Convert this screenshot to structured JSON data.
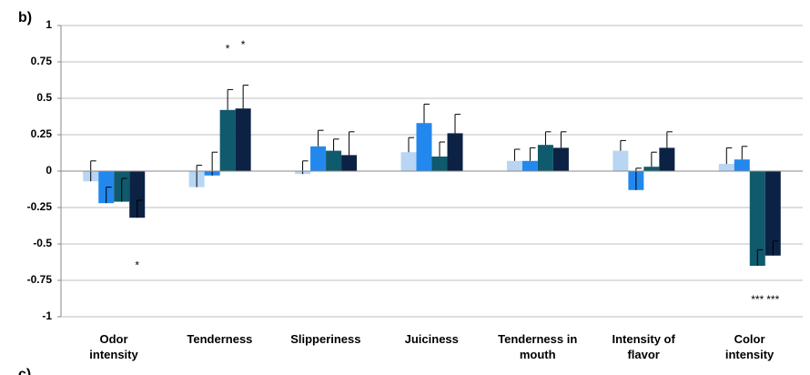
{
  "chart_data": {
    "type": "bar",
    "panel_label": "b)",
    "next_panel_label": "c)",
    "categories": [
      "Odor\nintensity",
      "Tenderness",
      "Slipperiness",
      "Juiciness",
      "Tenderness in\nmouth",
      "Intensity of\nflavor",
      "Color\nintensity"
    ],
    "series": [
      {
        "color": "#b8d6f3",
        "values": [
          -0.07,
          -0.11,
          -0.02,
          0.13,
          0.07,
          0.14,
          0.05
        ],
        "errors": [
          0.14,
          0.15,
          0.09,
          0.1,
          0.08,
          0.07,
          0.11
        ]
      },
      {
        "color": "#2388ee",
        "values": [
          -0.22,
          -0.03,
          0.17,
          0.33,
          0.07,
          -0.13,
          0.08
        ],
        "errors": [
          0.11,
          0.16,
          0.11,
          0.13,
          0.09,
          0.15,
          0.09
        ]
      },
      {
        "color": "#0f5a6c",
        "values": [
          -0.21,
          0.42,
          0.14,
          0.1,
          0.18,
          0.03,
          -0.65
        ],
        "errors": [
          0.16,
          0.14,
          0.08,
          0.1,
          0.09,
          0.1,
          0.11
        ]
      },
      {
        "color": "#0c2244",
        "values": [
          -0.32,
          0.43,
          0.11,
          0.26,
          0.16,
          0.16,
          -0.58
        ],
        "errors": [
          0.12,
          0.16,
          0.16,
          0.13,
          0.11,
          0.11,
          0.1
        ]
      }
    ],
    "annotations": [
      {
        "text": "*",
        "category": 1,
        "series": 2
      },
      {
        "text": "*",
        "category": 1,
        "series": 3
      },
      {
        "text": "*",
        "category": 0,
        "series": 3
      },
      {
        "text": "***",
        "category": 6,
        "series": 2
      },
      {
        "text": "***",
        "category": 6,
        "series": 3
      }
    ],
    "ylim": [
      -1,
      1
    ],
    "yticks": [
      -1,
      -0.75,
      -0.5,
      -0.25,
      0,
      0.25,
      0.5,
      0.75,
      1
    ],
    "grid": true
  }
}
